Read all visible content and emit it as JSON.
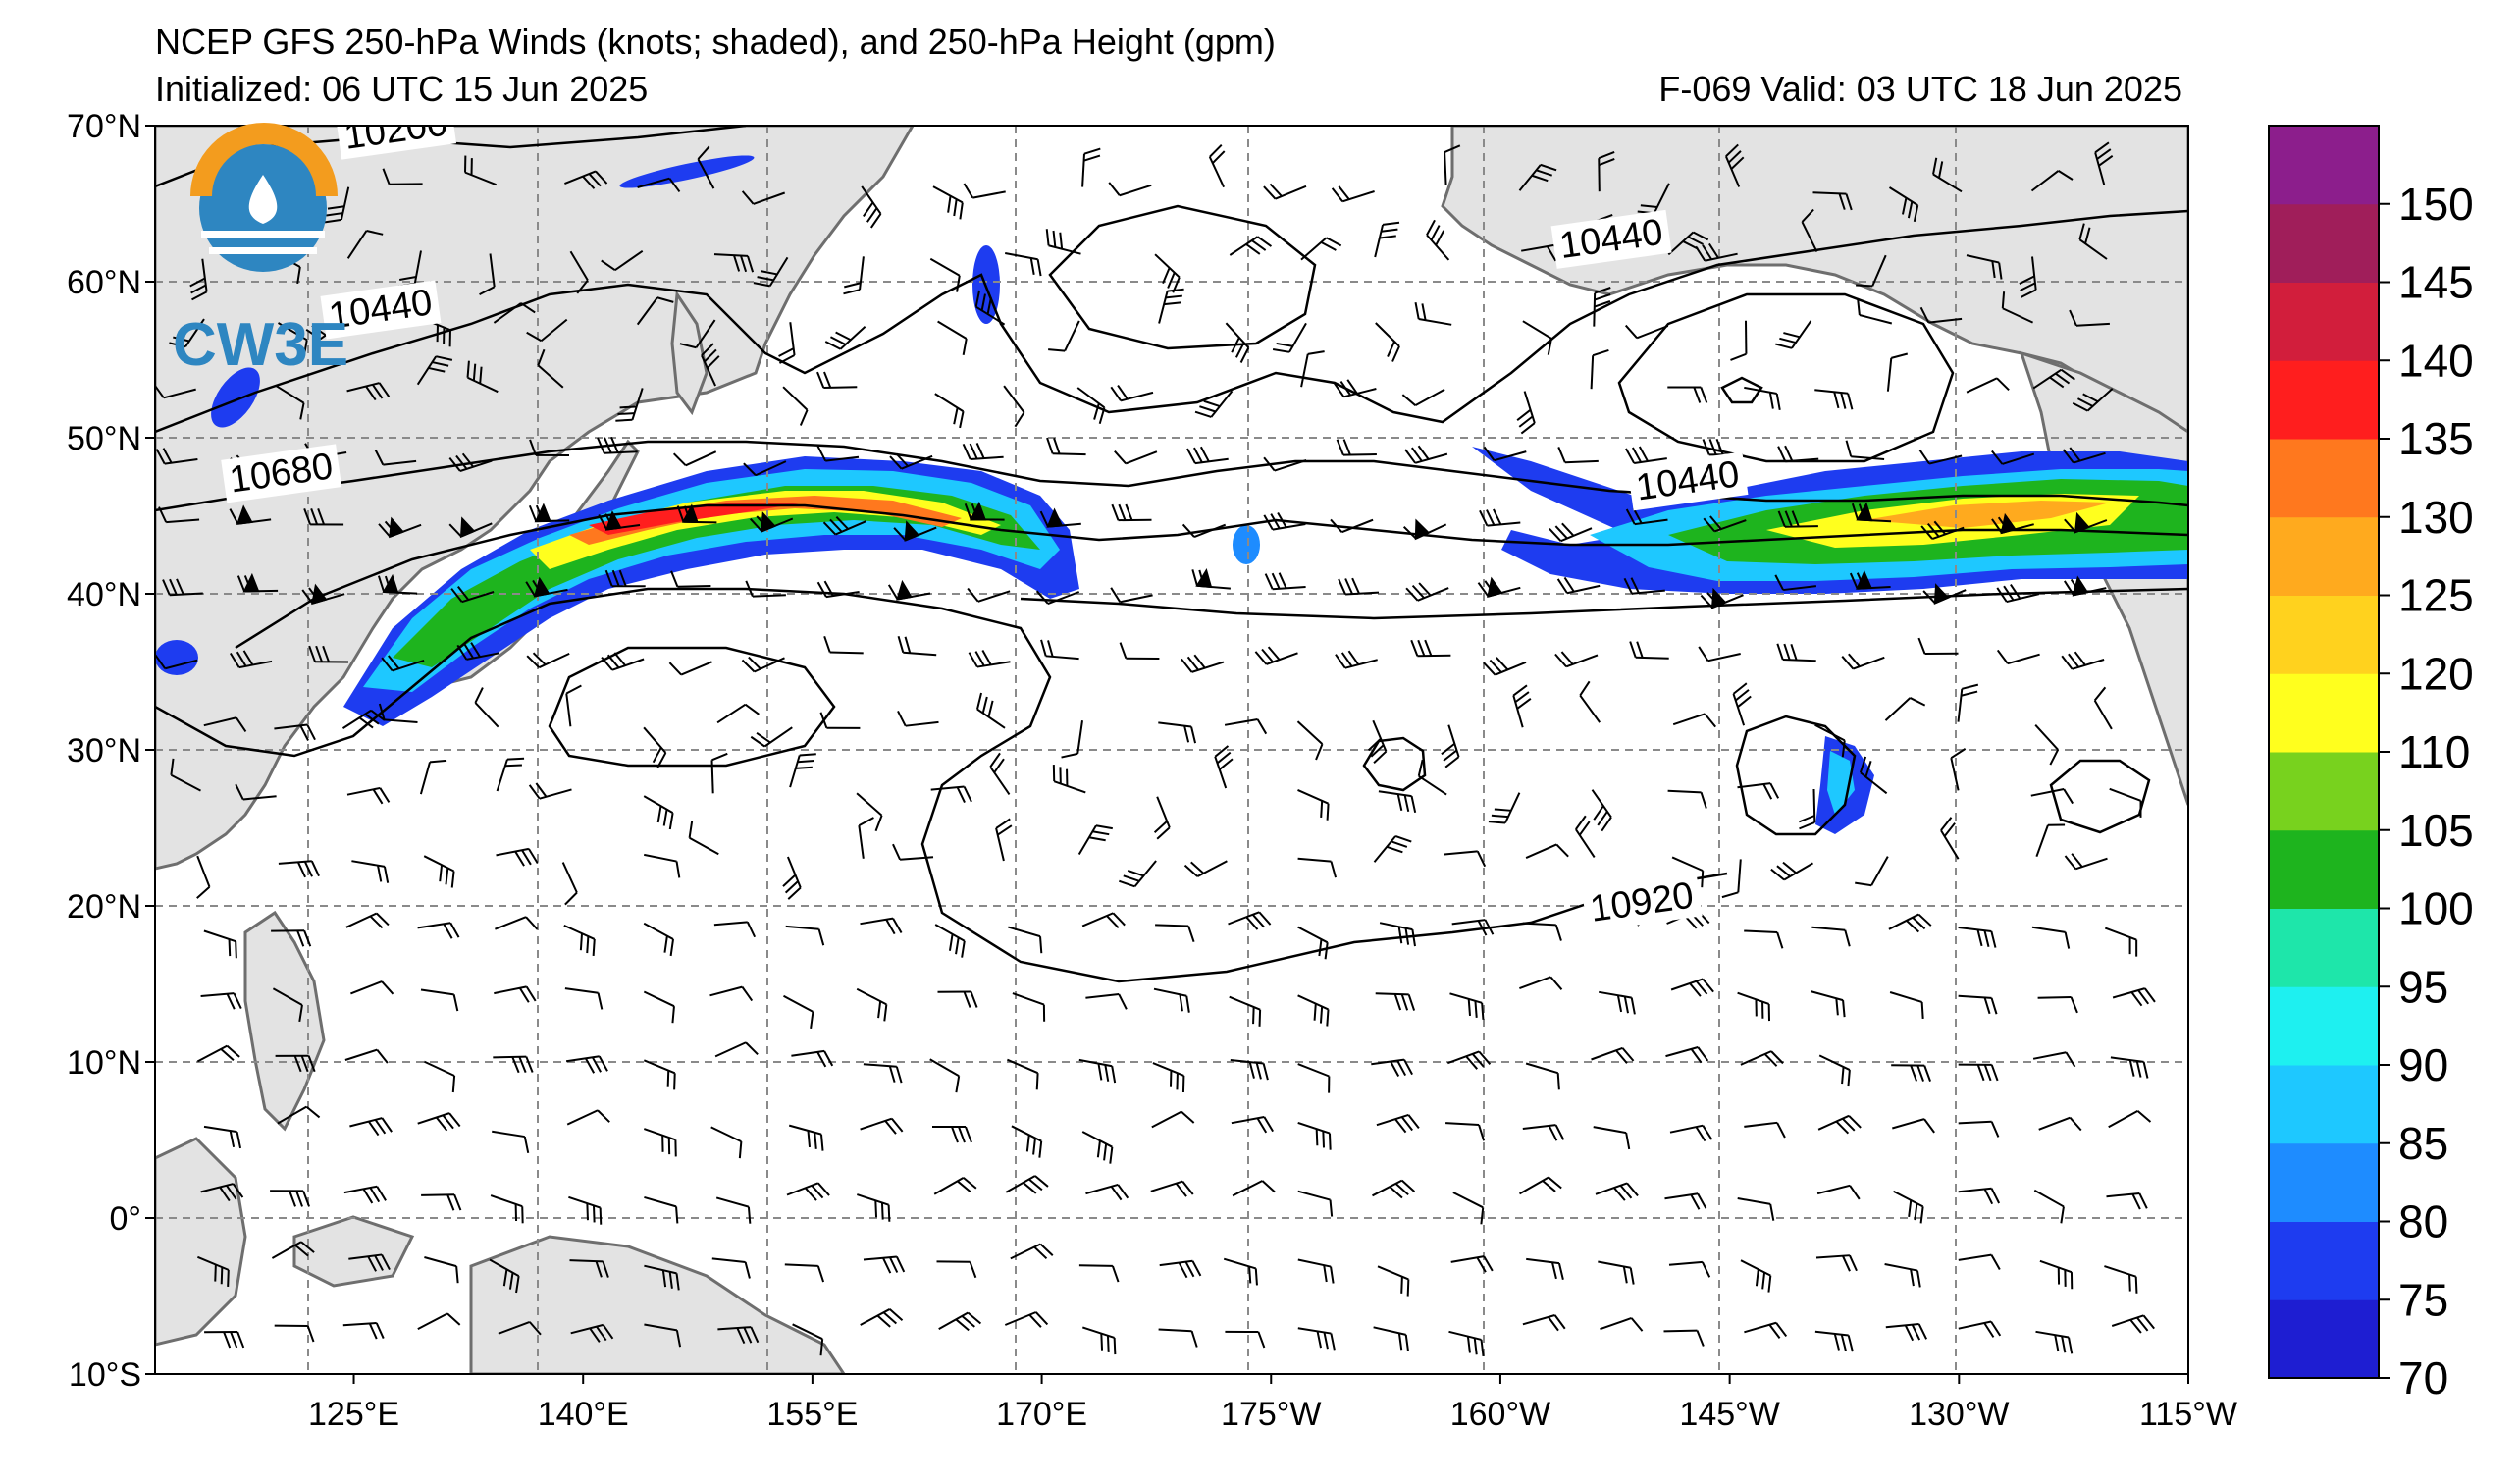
{
  "header": {
    "title": "NCEP GFS 250-hPa Winds (knots; shaded), and 250-hPa Height (gpm)",
    "initialized": "Initialized: 06 UTC 15 Jun 2025",
    "valid": "F-069  Valid: 03 UTC 18 Jun 2025"
  },
  "logo": {
    "text": "CW3E",
    "ring_color": "#f39c1e",
    "drop_color": "#2e86c1"
  },
  "map": {
    "projection": "cylindrical",
    "lon_range": [
      112,
      245
    ],
    "lat_range": [
      -10,
      70
    ],
    "land_color": "#e3e3e3",
    "ocean_color": "#ffffff",
    "grid": "dashed"
  },
  "axes": {
    "lat_ticks": [
      {
        "value": 70,
        "label": "70°N"
      },
      {
        "value": 60,
        "label": "60°N"
      },
      {
        "value": 50,
        "label": "50°N"
      },
      {
        "value": 40,
        "label": "40°N"
      },
      {
        "value": 30,
        "label": "30°N"
      },
      {
        "value": 20,
        "label": "20°N"
      },
      {
        "value": 10,
        "label": "10°N"
      },
      {
        "value": 0,
        "label": "0°"
      },
      {
        "value": -10,
        "label": "10°S"
      }
    ],
    "lon_ticks": [
      {
        "value": 125,
        "label": "125°E"
      },
      {
        "value": 140,
        "label": "140°E"
      },
      {
        "value": 155,
        "label": "155°E"
      },
      {
        "value": 170,
        "label": "170°E"
      },
      {
        "value": 185,
        "label": "175°W"
      },
      {
        "value": 200,
        "label": "160°W"
      },
      {
        "value": 215,
        "label": "145°W"
      },
      {
        "value": 230,
        "label": "130°W"
      },
      {
        "value": 245,
        "label": "115°W"
      }
    ]
  },
  "contour_labels": [
    {
      "text": "10200",
      "lon": 124.5,
      "lat": 68.5
    },
    {
      "text": "10440",
      "lon": 123.5,
      "lat": 57
    },
    {
      "text": "10680",
      "lon": 117,
      "lat": 46.5
    },
    {
      "text": "10440",
      "lon": 204,
      "lat": 61.5
    },
    {
      "text": "10440",
      "lon": 209,
      "lat": 46
    },
    {
      "text": "10920",
      "lon": 206,
      "lat": 19
    }
  ],
  "colorbar": {
    "levels": [
      70,
      75,
      80,
      85,
      90,
      95,
      100,
      105,
      110,
      120,
      125,
      130,
      135,
      140,
      145,
      150
    ],
    "colors": [
      "#1e1ed2",
      "#1e3cf0",
      "#1e8cff",
      "#1ec8ff",
      "#1ef0f0",
      "#1ee6aa",
      "#1eb41e",
      "#78d21e",
      "#ffff1e",
      "#ffd21e",
      "#ffaa1e",
      "#ff781e",
      "#ff1e1e",
      "#d21e3c",
      "#a01e5a",
      "#8c1e8c"
    ]
  },
  "chart_data": {
    "type": "map",
    "title": "NCEP GFS 250-hPa Winds (knots; shaded), and 250-hPa Height (gpm)",
    "height_contours_gpm": [
      10200,
      10440,
      10680,
      10920
    ],
    "jet_streaks": [
      {
        "region": "off Japan to dateline",
        "approx_center_lon": 152,
        "approx_center_lat": 45,
        "max_kt_approx": 135
      },
      {
        "region": "northeast Pacific",
        "approx_center_lon": 230,
        "approx_center_lat": 45,
        "max_kt_approx": 120
      }
    ]
  }
}
